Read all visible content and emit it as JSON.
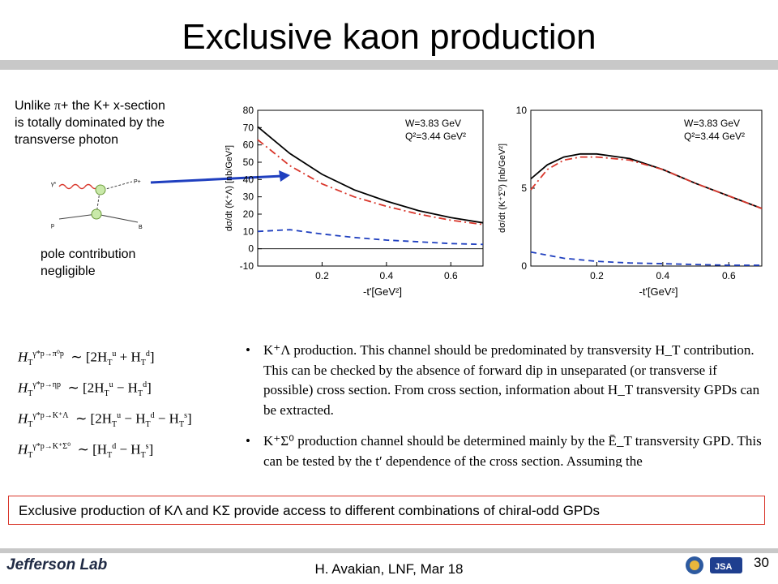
{
  "title": "Exclusive kaon production",
  "left_note": {
    "line1_pre": "Unlike ",
    "line1_sym": "π",
    "line1_post": "+ the K+ x-section",
    "line2": "is totally dominated by the",
    "line3": "transverse photon"
  },
  "diagram_labels": {
    "gamma": "γ*",
    "p_plus": "P+",
    "p": "p",
    "b": "B"
  },
  "pole_note": {
    "line1": "pole contribution",
    "line2": "negligible"
  },
  "chart_data": [
    {
      "type": "line",
      "xlabel": "-t'[GeV²]",
      "ylabel": "dσ/dt (K⁺Λ) [nb/GeV²]",
      "annotation_w": "W=3.83 GeV",
      "annotation_q2": "Q²=3.44 GeV²",
      "xlim": [
        0.0,
        0.7
      ],
      "ylim": [
        -10,
        80
      ],
      "yticks": [
        "80",
        "70",
        "60",
        "50",
        "40",
        "30",
        "20",
        "10",
        "0",
        "-10"
      ],
      "xticks": [
        "0.2",
        "0.4",
        "0.6"
      ],
      "x": [
        0.0,
        0.1,
        0.2,
        0.3,
        0.4,
        0.5,
        0.6,
        0.7
      ],
      "series": [
        {
          "style": "solid",
          "color": "#000000",
          "values": [
            70.5,
            55.0,
            43.0,
            34.0,
            27.5,
            22.0,
            18.0,
            15.0
          ]
        },
        {
          "style": "dashdot",
          "color": "#d9362b",
          "values": [
            63.0,
            48.0,
            37.5,
            30.0,
            24.5,
            20.0,
            16.5,
            14.0
          ]
        },
        {
          "style": "dashed",
          "color": "#1f3fbf",
          "values": [
            10.0,
            11.0,
            8.5,
            6.5,
            5.0,
            4.0,
            3.0,
            2.5
          ]
        }
      ]
    },
    {
      "type": "line",
      "xlabel": "-t'[GeV²]",
      "ylabel": "dσ/dt (K⁺Σ⁰) [nb/GeV²]",
      "annotation_w": "W=3.83 GeV",
      "annotation_q2": "Q²=3.44 GeV²",
      "xlim": [
        0.0,
        0.7
      ],
      "ylim": [
        0,
        10
      ],
      "yticks": [
        "10",
        "5",
        "0"
      ],
      "xticks": [
        "0.2",
        "0.4",
        "0.6"
      ],
      "x": [
        0.0,
        0.05,
        0.1,
        0.15,
        0.2,
        0.3,
        0.4,
        0.5,
        0.6,
        0.7
      ],
      "series": [
        {
          "style": "solid",
          "color": "#000000",
          "values": [
            5.6,
            6.5,
            7.0,
            7.2,
            7.2,
            6.9,
            6.2,
            5.3,
            4.5,
            3.7
          ]
        },
        {
          "style": "dashdot",
          "color": "#d9362b",
          "values": [
            4.9,
            6.2,
            6.8,
            7.0,
            7.0,
            6.8,
            6.2,
            5.3,
            4.5,
            3.7
          ]
        },
        {
          "style": "dashed",
          "color": "#1f3fbf",
          "values": [
            0.9,
            0.7,
            0.5,
            0.4,
            0.3,
            0.2,
            0.15,
            0.1,
            0.05,
            0.05
          ]
        }
      ]
    }
  ],
  "equations": [
    {
      "sup": "γ*p→π⁰p",
      "rhs": "∼ [2H",
      "rhs_sub1": "T",
      "rhs_sup1": "u",
      "rhs_mid": " + H",
      "rhs_sub2": "T",
      "rhs_sup2": "d",
      "rhs_end": "]"
    },
    {
      "sup": "γ*p→ηp",
      "rhs": "∼ [2H",
      "rhs_sub1": "T",
      "rhs_sup1": "u",
      "rhs_mid": " − H",
      "rhs_sub2": "T",
      "rhs_sup2": "d",
      "rhs_end": "]"
    },
    {
      "sup": "γ*p→K⁺Λ",
      "rhs": "∼ [2H",
      "rhs_sub1": "T",
      "rhs_sup1": "u",
      "rhs_mid": " − H",
      "rhs_sub2": "T",
      "rhs_sup2": "d",
      "rhs_end": " − H",
      "rhs_sub3": "T",
      "rhs_sup3": "s",
      "rhs_close": "]"
    },
    {
      "sup": "γ*p→K⁺Σ⁰",
      "rhs": "∼ [H",
      "rhs_sub1": "T",
      "rhs_sup1": "d",
      "rhs_mid": " − H",
      "rhs_sub2": "T",
      "rhs_sup2": "s",
      "rhs_end": "]"
    }
  ],
  "bullets": [
    "K⁺Λ production. This channel should be predominated by transversity H_T contribution. This can be checked by the absence of forward dip in unseparated (or transverse if possible) cross section. From cross section, information about H_T transversity GPDs can be extracted.",
    "K⁺Σ⁰ production channel should be determined mainly by the Ē_T transversity GPD. This can be tested by the t′ dependence of the cross section. Assuming the"
  ],
  "summary": "Exclusive production of KΛ and KΣ provide access to different combinations of chiral-odd GPDs",
  "footer": {
    "logo": "Jefferson Lab",
    "presenter": "H. Avakian,  LNF,  Mar 18",
    "page": "30"
  }
}
